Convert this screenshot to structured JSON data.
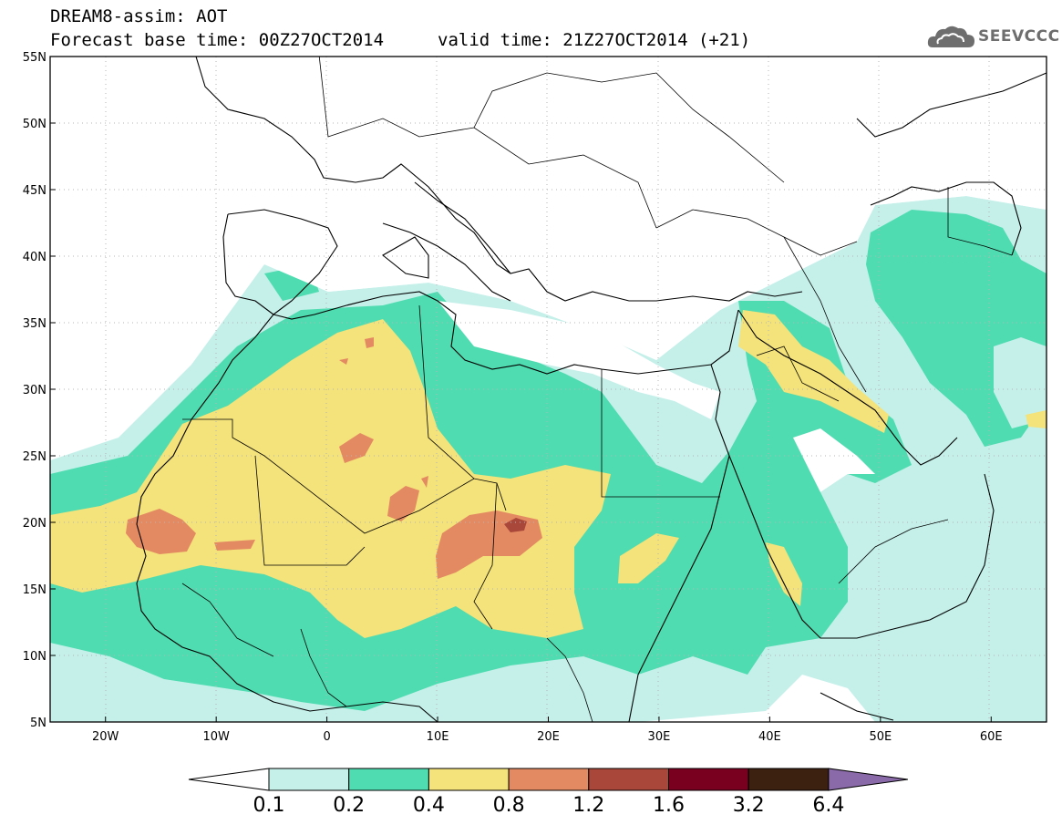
{
  "header": {
    "title": "DREAM8-assim: AOT",
    "base_time": "Forecast base time: 00Z27OCT2014",
    "valid_time": "valid time: 21Z27OCT2014 (+21)"
  },
  "logo": {
    "text": "SEEVCCC",
    "icon": "cloud-icon"
  },
  "map": {
    "lon_range": [
      -25,
      65
    ],
    "lat_range": [
      5,
      55
    ],
    "lat_ticks": [
      {
        "value": 55,
        "label": "55N"
      },
      {
        "value": 50,
        "label": "50N"
      },
      {
        "value": 45,
        "label": "45N"
      },
      {
        "value": 40,
        "label": "40N"
      },
      {
        "value": 35,
        "label": "35N"
      },
      {
        "value": 30,
        "label": "30N"
      },
      {
        "value": 25,
        "label": "25N"
      },
      {
        "value": 20,
        "label": "20N"
      },
      {
        "value": 15,
        "label": "15N"
      },
      {
        "value": 10,
        "label": "10N"
      },
      {
        "value": 5,
        "label": "5N"
      }
    ],
    "lon_ticks": [
      {
        "value": -20,
        "label": "20W"
      },
      {
        "value": -10,
        "label": "10W"
      },
      {
        "value": 0,
        "label": "0"
      },
      {
        "value": 10,
        "label": "10E"
      },
      {
        "value": 20,
        "label": "20E"
      },
      {
        "value": 30,
        "label": "30E"
      },
      {
        "value": 40,
        "label": "40E"
      },
      {
        "value": 50,
        "label": "50E"
      },
      {
        "value": 60,
        "label": "60E"
      }
    ],
    "grid": true
  },
  "colorbar": {
    "under_color": "#ffffff",
    "colors": [
      "#c5f0ea",
      "#4fdcb0",
      "#f4e27a",
      "#e38a63",
      "#a9473a",
      "#7a0020",
      "#3c2010",
      "#8a6aa8"
    ],
    "labels": [
      "0.1",
      "0.2",
      "0.4",
      "0.8",
      "1.2",
      "1.6",
      "3.2",
      "6.4"
    ]
  }
}
